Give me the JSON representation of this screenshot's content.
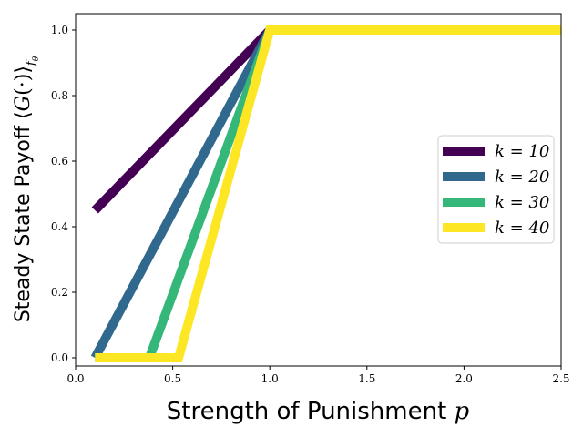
{
  "chart_data": {
    "type": "line",
    "xlabel": "Strength of Punishment p",
    "ylabel": "Steady State Payoff ⟨G(·)⟩_{f_θ}",
    "xlim": [
      0.0,
      2.5
    ],
    "ylim": [
      -0.025,
      1.05
    ],
    "xticks": [
      "0.0",
      "0.5",
      "1.0",
      "1.5",
      "2.0",
      "2.5"
    ],
    "yticks": [
      "0.0",
      "0.2",
      "0.4",
      "0.6",
      "0.8",
      "1.0"
    ],
    "grid": false,
    "legend_position": "center-right",
    "series": [
      {
        "name": "k = 10",
        "color": "#440154",
        "x": [
          0.1,
          1.0,
          2.5
        ],
        "y": [
          0.45,
          1.0,
          1.0
        ]
      },
      {
        "name": "k = 20",
        "color": "#31688e",
        "x": [
          0.1,
          1.0,
          2.5
        ],
        "y": [
          0.0,
          1.0,
          1.0
        ]
      },
      {
        "name": "k = 30",
        "color": "#35b779",
        "x": [
          0.1,
          0.38,
          1.0,
          2.5
        ],
        "y": [
          0.0,
          0.0,
          1.0,
          1.0
        ]
      },
      {
        "name": "k = 40",
        "color": "#fde725",
        "x": [
          0.1,
          0.53,
          1.0,
          2.5
        ],
        "y": [
          0.0,
          0.0,
          1.0,
          1.0
        ]
      }
    ]
  }
}
